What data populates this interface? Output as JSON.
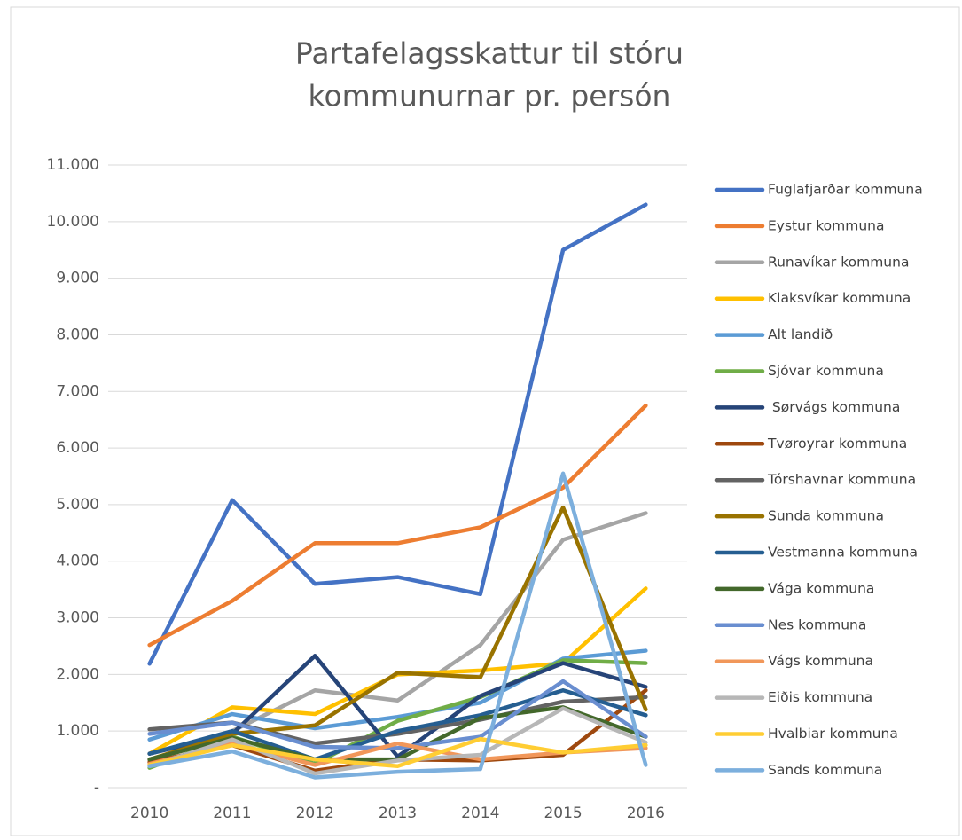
{
  "chart_data": {
    "type": "line",
    "title": [
      "Partafelagsskattur til stóru",
      "kommunurnar pr. persón"
    ],
    "categories": [
      "2010",
      "2011",
      "2012",
      "2013",
      "2014",
      "2015",
      "2016"
    ],
    "ylim": [
      0,
      11000
    ],
    "yticks": [
      {
        "value": 0,
        "label": "-"
      },
      {
        "value": 1000,
        "label": "1.000"
      },
      {
        "value": 2000,
        "label": "2.000"
      },
      {
        "value": 3000,
        "label": "3.000"
      },
      {
        "value": 4000,
        "label": "4.000"
      },
      {
        "value": 5000,
        "label": "5.000"
      },
      {
        "value": 6000,
        "label": "6.000"
      },
      {
        "value": 7000,
        "label": "7.000"
      },
      {
        "value": 8000,
        "label": "8.000"
      },
      {
        "value": 9000,
        "label": "9.000"
      },
      {
        "value": 10000,
        "label": "10.000"
      },
      {
        "value": 11000,
        "label": "11.000"
      }
    ],
    "grid": true,
    "legend": "right",
    "series": [
      {
        "name": "Fuglafjarðar kommuna",
        "color": "#4472c4",
        "values": [
          2190,
          5080,
          3600,
          3720,
          3420,
          9500,
          10300
        ]
      },
      {
        "name": "Eystur kommuna",
        "color": "#ed7d31",
        "values": [
          2520,
          3300,
          4320,
          4320,
          4600,
          5300,
          6750
        ]
      },
      {
        "name": "Runavíkar kommuna",
        "color": "#a5a5a5",
        "values": [
          480,
          1000,
          1720,
          1540,
          2520,
          4380,
          4850
        ]
      },
      {
        "name": "Klaksvíkar kommuna",
        "color": "#ffc000",
        "values": [
          600,
          1420,
          1300,
          2000,
          2070,
          2200,
          3520
        ]
      },
      {
        "name": "Alt landið",
        "color": "#5b9bd5",
        "values": [
          850,
          1300,
          1050,
          1250,
          1500,
          2280,
          2420
        ]
      },
      {
        "name": "Sjóvar kommuna",
        "color": "#70ad47",
        "values": [
          350,
          900,
          420,
          1180,
          1600,
          2250,
          2200
        ]
      },
      {
        "name": " Sørvágs kommuna",
        "color": "#264478",
        "values": [
          600,
          950,
          2330,
          550,
          1620,
          2200,
          1780
        ]
      },
      {
        "name": "Tvøroyrar kommuna",
        "color": "#9e480e",
        "values": [
          450,
          750,
          300,
          500,
          480,
          580,
          1720
        ]
      },
      {
        "name": "Tórshavnar kommuna",
        "color": "#636363",
        "values": [
          1030,
          1150,
          780,
          950,
          1200,
          1520,
          1600
        ]
      },
      {
        "name": "Sunda kommuna",
        "color": "#997300",
        "values": [
          500,
          950,
          1100,
          2030,
          1950,
          4950,
          1380
        ]
      },
      {
        "name": "Vestmanna kommuna",
        "color": "#255e91",
        "values": [
          600,
          1000,
          500,
          1000,
          1280,
          1720,
          1280
        ]
      },
      {
        "name": "Vága kommuna",
        "color": "#43682b",
        "values": [
          500,
          880,
          500,
          500,
          1230,
          1420,
          900
        ]
      },
      {
        "name": "Nes kommuna",
        "color": "#698ed0",
        "values": [
          950,
          1150,
          720,
          700,
          900,
          1880,
          900
        ]
      },
      {
        "name": "Vágs kommuna",
        "color": "#f1975a",
        "values": [
          420,
          780,
          400,
          780,
          500,
          620,
          700
        ]
      },
      {
        "name": "Eiðis kommuna",
        "color": "#b7b7b7",
        "values": [
          380,
          850,
          250,
          480,
          580,
          1400,
          800
        ]
      },
      {
        "name": "Hvalbiar kommuna",
        "color": "#ffcd33",
        "values": [
          400,
          750,
          500,
          380,
          860,
          620,
          750
        ]
      },
      {
        "name": "Sands kommuna",
        "color": "#7cafdd",
        "values": [
          380,
          640,
          180,
          280,
          330,
          5550,
          400
        ]
      }
    ]
  }
}
